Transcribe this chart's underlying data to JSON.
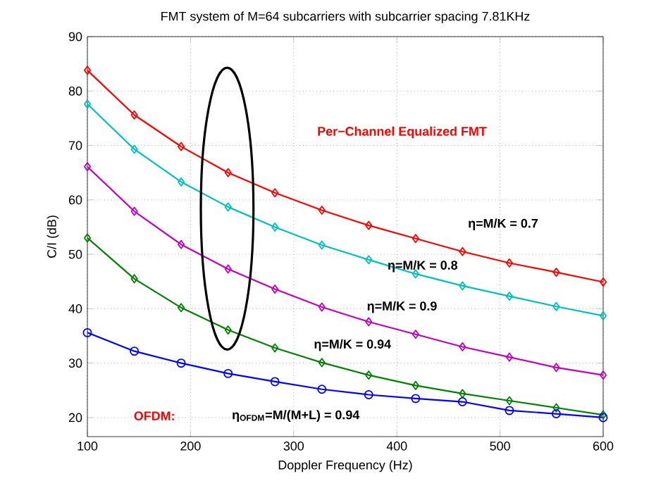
{
  "chart_data": {
    "type": "line",
    "title": "FMT system of M=64 subcarriers with subcarrier spacing 7.81KHz",
    "xlabel": "Doppler Frequency (Hz)",
    "ylabel": "C/I (dB)",
    "x": [
      100,
      145.5,
      190.9,
      236.4,
      281.8,
      327.3,
      372.7,
      418.2,
      463.6,
      509.1,
      554.5,
      600
    ],
    "series": [
      {
        "color": "#ff0000",
        "marker": "diamond",
        "values": [
          83.8,
          75.6,
          69.8,
          65.0,
          61.3,
          58.1,
          55.3,
          52.9,
          50.5,
          48.4,
          46.7,
          44.9
        ]
      },
      {
        "color": "#00bfbf",
        "marker": "diamond",
        "values": [
          77.6,
          69.3,
          63.3,
          58.7,
          55.0,
          51.7,
          49.0,
          46.4,
          44.2,
          42.3,
          40.4,
          38.7
        ]
      },
      {
        "color": "#bf00bf",
        "marker": "diamond",
        "values": [
          66.1,
          57.9,
          51.8,
          47.3,
          43.6,
          40.3,
          37.6,
          35.3,
          33.0,
          31.1,
          29.2,
          27.8
        ]
      },
      {
        "color": "#008000",
        "marker": "diamond",
        "values": [
          53.0,
          45.5,
          40.2,
          36.1,
          32.8,
          30.1,
          27.8,
          25.9,
          24.4,
          23.1,
          21.8,
          20.5
        ]
      },
      {
        "color": "#0000ff",
        "marker": "circle",
        "values": [
          35.6,
          32.2,
          30.0,
          28.1,
          26.6,
          25.2,
          24.2,
          23.5,
          22.9,
          21.3,
          20.7,
          20.0
        ]
      }
    ],
    "xlim": [
      100,
      600
    ],
    "ylim": [
      16.5,
      90
    ],
    "xticks": [
      100,
      200,
      300,
      400,
      500,
      600
    ],
    "yticks": [
      20,
      30,
      40,
      50,
      60,
      70,
      80,
      90
    ],
    "grid": true,
    "line_style": "solid",
    "annotations": [
      "Per−Channel Equalized FMT",
      "η=M/K = 0.7",
      "η=M/K = 0.8",
      "η=M/K = 0.9",
      "η=M/K = 0.94",
      "OFDM:",
      "η$_{OFDM}$=M/(M+L) = 0.94"
    ]
  }
}
